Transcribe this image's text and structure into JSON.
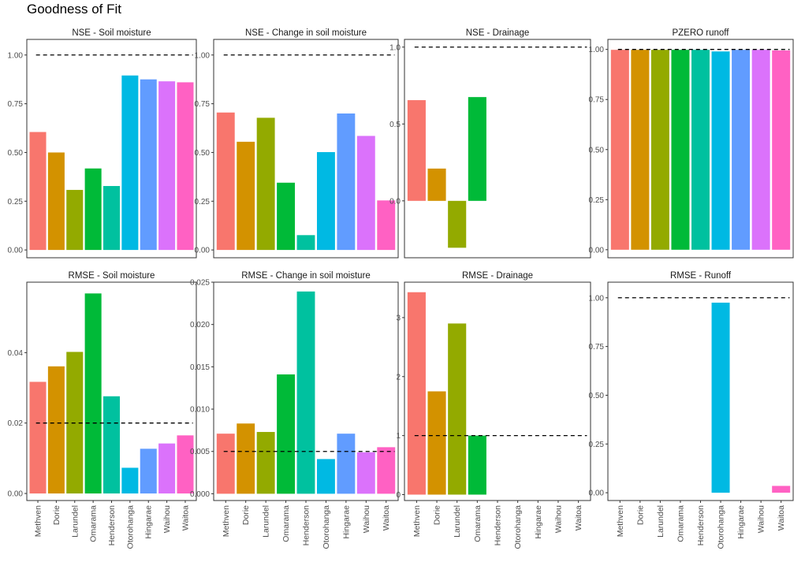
{
  "page_title": "Goodness of Fit",
  "colors": [
    "#F8766D",
    "#D39200",
    "#93AA00",
    "#00BA38",
    "#00C19F",
    "#00B9E3",
    "#619CFF",
    "#DB72FB",
    "#FF61C3"
  ],
  "chart_data": [
    {
      "type": "bar",
      "title": "NSE - Soil moisture",
      "categories": [
        "Methven",
        "Dorie",
        "Larundel",
        "Omarama",
        "Henderson",
        "Otorohanga",
        "Hingarae",
        "Waihou",
        "Waitoa"
      ],
      "values": [
        0.605,
        0.5,
        0.308,
        0.418,
        0.328,
        0.895,
        0.875,
        0.865,
        0.86
      ],
      "reference_line": 1.0,
      "ylim": [
        -0.04,
        1.08
      ],
      "yticks": [
        0.0,
        0.25,
        0.5,
        0.75,
        1.0
      ],
      "ytick_labels": [
        "0.00",
        "0.25",
        "0.50",
        "0.75",
        "1.00"
      ],
      "show_x_labels": false
    },
    {
      "type": "bar",
      "title": "NSE - Change in soil moisture",
      "categories": [
        "Methven",
        "Dorie",
        "Larundel",
        "Omarama",
        "Henderson",
        "Otorohanga",
        "Hingarae",
        "Waihou",
        "Waitoa"
      ],
      "values": [
        0.705,
        0.555,
        0.678,
        0.345,
        0.076,
        0.502,
        0.7,
        0.585,
        0.254
      ],
      "reference_line": 1.0,
      "ylim": [
        -0.04,
        1.08
      ],
      "yticks": [
        0.0,
        0.25,
        0.5,
        0.75,
        1.0
      ],
      "ytick_labels": [
        "0.00",
        "0.25",
        "0.50",
        "0.75",
        "1.00"
      ],
      "show_x_labels": false
    },
    {
      "type": "bar",
      "title": "NSE - Drainage",
      "categories": [
        "Methven",
        "Dorie",
        "Larundel",
        "Omarama",
        "Henderson",
        "Otorohanga",
        "Hingarae",
        "Waihou",
        "Waitoa"
      ],
      "values": [
        0.655,
        0.21,
        -0.305,
        0.675,
        null,
        null,
        null,
        null,
        null
      ],
      "reference_line": 1.0,
      "ylim": [
        -0.37,
        1.05
      ],
      "yticks": [
        0.0,
        0.5,
        1.0
      ],
      "ytick_labels": [
        "0.0",
        "0.5",
        "1.0"
      ],
      "show_x_labels": false
    },
    {
      "type": "bar",
      "title": "PZERO runoff",
      "categories": [
        "Methven",
        "Dorie",
        "Larundel",
        "Omarama",
        "Henderson",
        "Otorohanga",
        "Hingarae",
        "Waihou",
        "Waitoa"
      ],
      "values": [
        0.998,
        0.998,
        0.998,
        0.998,
        0.998,
        0.99,
        0.998,
        0.998,
        0.995
      ],
      "reference_line": 1.0,
      "ylim": [
        -0.04,
        1.05
      ],
      "yticks": [
        0.0,
        0.25,
        0.5,
        0.75,
        1.0
      ],
      "ytick_labels": [
        "0.00",
        "0.25",
        "0.50",
        "0.75",
        "1.00"
      ],
      "show_x_labels": false
    },
    {
      "type": "bar",
      "title": "RMSE - Soil moisture",
      "categories": [
        "Methven",
        "Dorie",
        "Larundel",
        "Omarama",
        "Henderson",
        "Otorohanga",
        "Hingarae",
        "Waihou",
        "Waitoa"
      ],
      "values": [
        0.0317,
        0.0361,
        0.0402,
        0.0568,
        0.0276,
        0.0073,
        0.0127,
        0.0142,
        0.0165
      ],
      "reference_line": 0.02,
      "ylim": [
        -0.002,
        0.06
      ],
      "yticks": [
        0.0,
        0.02,
        0.04
      ],
      "ytick_labels": [
        "0.00",
        "0.02",
        "0.04"
      ],
      "show_x_labels": true
    },
    {
      "type": "bar",
      "title": "RMSE - Change in soil moisture",
      "categories": [
        "Methven",
        "Dorie",
        "Larundel",
        "Omarama",
        "Henderson",
        "Otorohanga",
        "Hingarae",
        "Waihou",
        "Waitoa"
      ],
      "values": [
        0.0071,
        0.0083,
        0.0073,
        0.0141,
        0.0239,
        0.0041,
        0.0071,
        0.0049,
        0.0055
      ],
      "reference_line": 0.005,
      "ylim": [
        -0.0008,
        0.025
      ],
      "yticks": [
        0.0,
        0.005,
        0.01,
        0.015,
        0.02,
        0.025
      ],
      "ytick_labels": [
        "0.000",
        "0.005",
        "0.010",
        "0.015",
        "0.020",
        "0.025"
      ],
      "show_x_labels": true
    },
    {
      "type": "bar",
      "title": "RMSE - Drainage",
      "categories": [
        "Methven",
        "Dorie",
        "Larundel",
        "Omarama",
        "Henderson",
        "Otorohanga",
        "Hingarae",
        "Waihou",
        "Waitoa"
      ],
      "values": [
        3.43,
        1.75,
        2.9,
        1.0,
        null,
        null,
        null,
        null,
        null
      ],
      "reference_line": 1.0,
      "ylim": [
        -0.1,
        3.6
      ],
      "yticks": [
        0,
        1,
        2,
        3
      ],
      "ytick_labels": [
        "0",
        "1",
        "2",
        "3"
      ],
      "show_x_labels": true
    },
    {
      "type": "bar",
      "title": "RMSE - Runoff",
      "categories": [
        "Methven",
        "Dorie",
        "Larundel",
        "Omarama",
        "Henderson",
        "Otorohanga",
        "Hingarae",
        "Waihou",
        "Waitoa"
      ],
      "values": [
        null,
        null,
        null,
        null,
        null,
        0.975,
        null,
        null,
        0.035
      ],
      "reference_line": 1.0,
      "ylim": [
        -0.04,
        1.08
      ],
      "yticks": [
        0.0,
        0.25,
        0.5,
        0.75,
        1.0
      ],
      "ytick_labels": [
        "0.00",
        "0.25",
        "0.50",
        "0.75",
        "1.00"
      ],
      "show_x_labels": true
    }
  ]
}
